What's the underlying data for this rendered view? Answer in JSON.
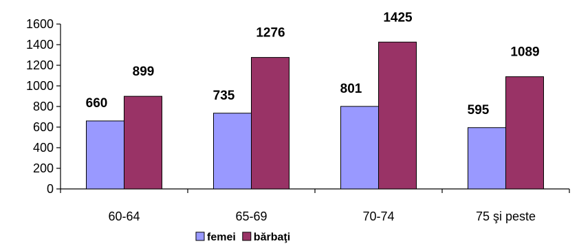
{
  "chart_data": {
    "type": "bar",
    "categories": [
      "60-64",
      "65-69",
      "70-74",
      "75 şi peste"
    ],
    "series": [
      {
        "name": "femei",
        "values": [
          660,
          735,
          801,
          595
        ],
        "color": "#9999ff"
      },
      {
        "name": "bărbaţi",
        "values": [
          899,
          1276,
          1425,
          1089
        ],
        "color": "#993366"
      }
    ],
    "ylim": [
      0,
      1600
    ],
    "yticks": [
      0,
      200,
      400,
      600,
      800,
      1000,
      1200,
      1400,
      1600
    ],
    "grid": false,
    "legend": "bottom",
    "data_labels": true
  }
}
